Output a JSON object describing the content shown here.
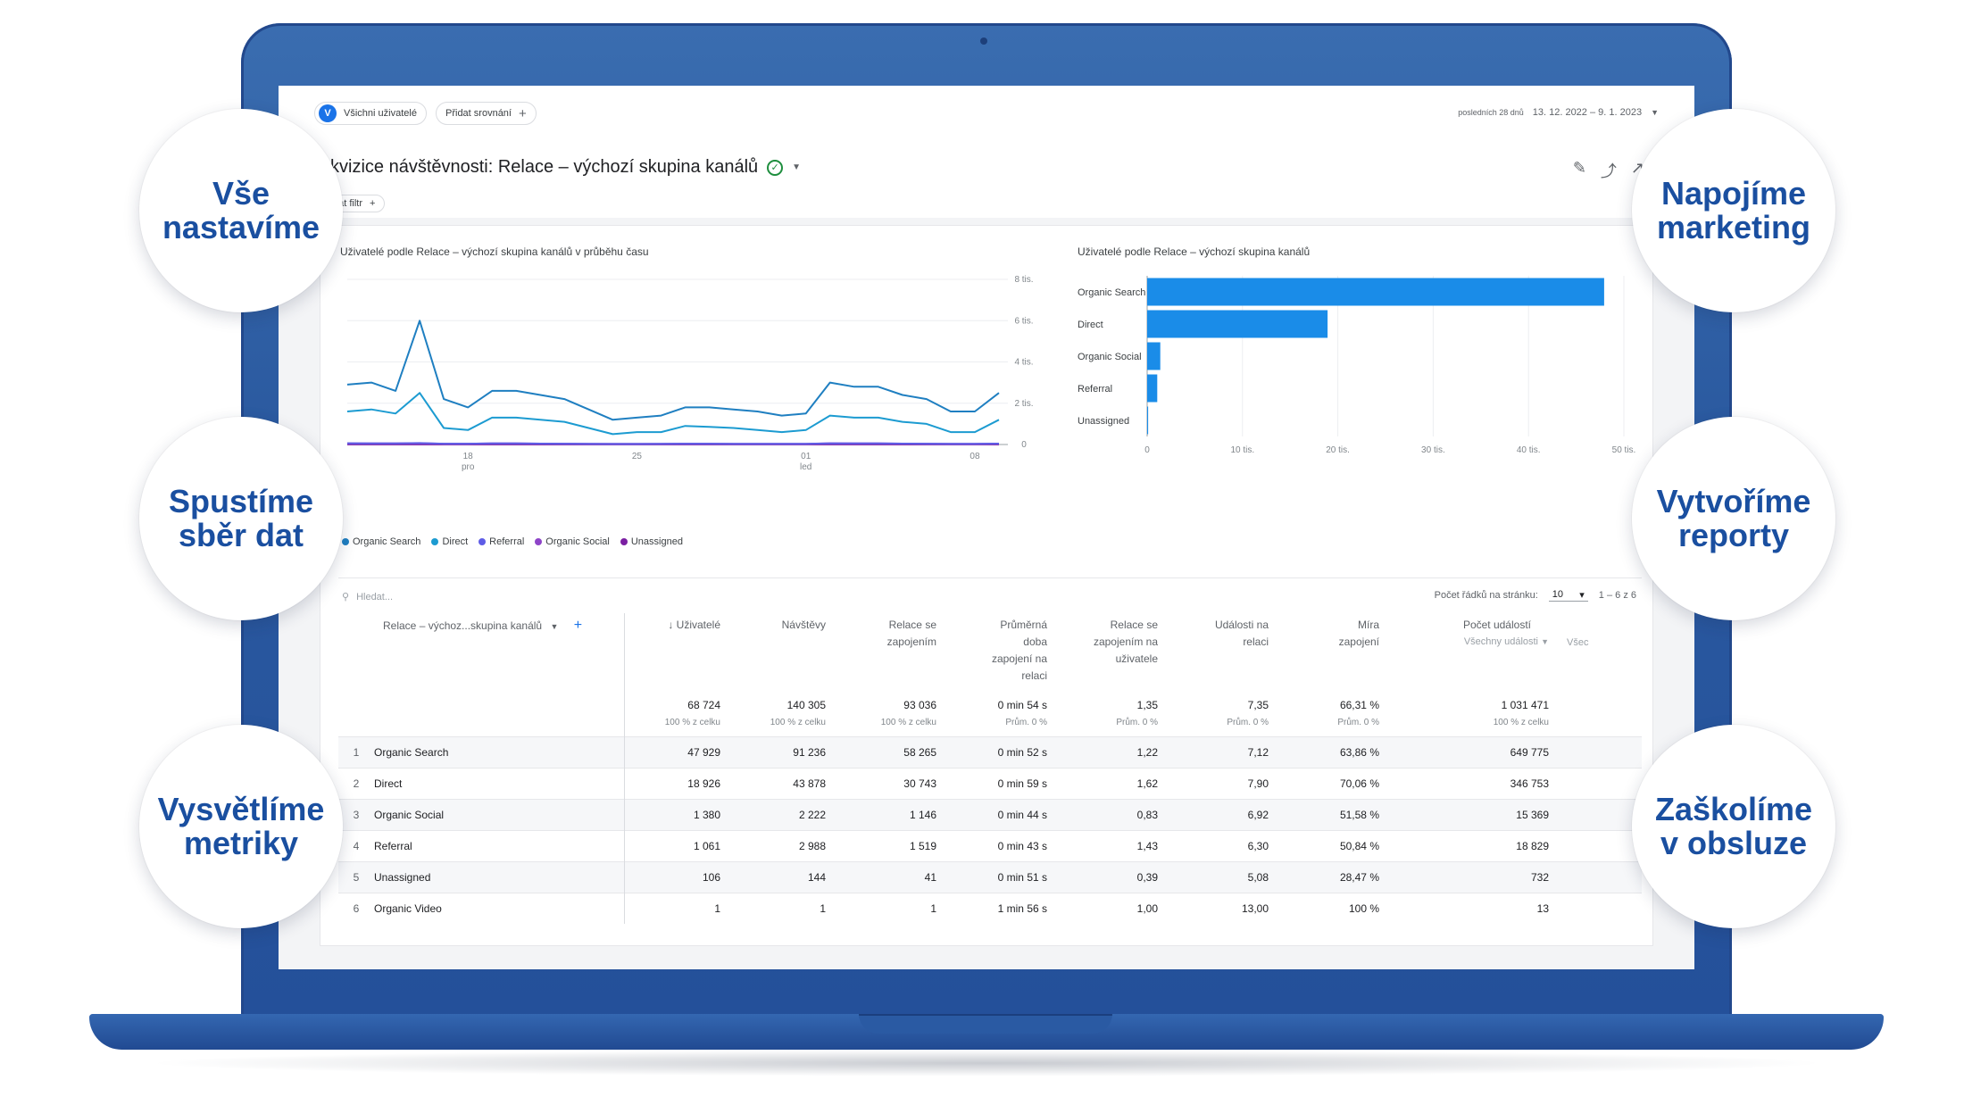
{
  "header": {
    "segment_chip": "Všichni uživatelé",
    "segment_avatar": "V",
    "compare_chip": "Přidat srovnání",
    "date_prefix": "posledních 28 dnů",
    "date_range": "13. 12. 2022 – 9. 1. 2023"
  },
  "report": {
    "title": "kvizice návštěvnosti: Relace – výchozí skupina kanálů",
    "filter_chip": "dat filtr"
  },
  "line_chart": {
    "title": "Uživatelé podle Relace – výchozí skupina kanálů v průběhu času",
    "y_ticks": [
      "8 tis.",
      "6 tis.",
      "4 tis.",
      "2 tis.",
      "0"
    ],
    "x_ticks": [
      {
        "top": "18",
        "bottom": "pro"
      },
      {
        "top": "25",
        "bottom": ""
      },
      {
        "top": "01",
        "bottom": "led"
      },
      {
        "top": "08",
        "bottom": ""
      }
    ],
    "legend": [
      {
        "name": "Organic Search",
        "color": "#1f7fc1"
      },
      {
        "name": "Direct",
        "color": "#1c9bd1"
      },
      {
        "name": "Referral",
        "color": "#5e5ce6"
      },
      {
        "name": "Organic Social",
        "color": "#8e44c8"
      },
      {
        "name": "Unassigned",
        "color": "#7b1fa2"
      }
    ]
  },
  "bar_chart": {
    "title": "Uživatelé podle Relace – výchozí skupina kanálů",
    "x_ticks": [
      "0",
      "10 tis.",
      "20 tis.",
      "30 tis.",
      "40 tis.",
      "50 tis."
    ]
  },
  "table": {
    "search_placeholder": "Hledat...",
    "rows_per_page_label": "Počet řádků na stránku:",
    "rows_per_page": "10",
    "pagination": "1 – 6 z 6",
    "dimension_header": "Relace – výchoz...skupina kanálů",
    "columns": [
      {
        "label": "↓ Uživatelé",
        "sub": ""
      },
      {
        "label": "Návštěvy",
        "sub": ""
      },
      {
        "label": "Relace se zapojením",
        "sub": ""
      },
      {
        "label": "Průměrná doba zapojení na relaci",
        "sub": ""
      },
      {
        "label": "Relace se zapojením na uživatele",
        "sub": ""
      },
      {
        "label": "Události na relaci",
        "sub": ""
      },
      {
        "label": "Míra zapojení",
        "sub": ""
      },
      {
        "label": "Počet událostí",
        "sub": "Všechny události"
      }
    ],
    "more_column": "Všec",
    "totals": [
      {
        "value": "68 724",
        "pct": "100 % z celku"
      },
      {
        "value": "140 305",
        "pct": "100 % z celku"
      },
      {
        "value": "93 036",
        "pct": "100 % z celku"
      },
      {
        "value": "0 min 54 s",
        "pct": "Prům. 0 %"
      },
      {
        "value": "1,35",
        "pct": "Prům. 0 %"
      },
      {
        "value": "7,35",
        "pct": "Prům. 0 %"
      },
      {
        "value": "66,31 %",
        "pct": "Prům. 0 %"
      },
      {
        "value": "1 031 471",
        "pct": "100 % z celku"
      }
    ],
    "rows": [
      {
        "idx": "1",
        "name": "Organic Search",
        "cells": [
          "47 929",
          "91 236",
          "58 265",
          "0 min 52 s",
          "1,22",
          "7,12",
          "63,86 %",
          "649 775"
        ]
      },
      {
        "idx": "2",
        "name": "Direct",
        "cells": [
          "18 926",
          "43 878",
          "30 743",
          "0 min 59 s",
          "1,62",
          "7,90",
          "70,06 %",
          "346 753"
        ]
      },
      {
        "idx": "3",
        "name": "Organic Social",
        "cells": [
          "1 380",
          "2 222",
          "1 146",
          "0 min 44 s",
          "0,83",
          "6,92",
          "51,58 %",
          "15 369"
        ]
      },
      {
        "idx": "4",
        "name": "Referral",
        "cells": [
          "1 061",
          "2 988",
          "1 519",
          "0 min 43 s",
          "1,43",
          "6,30",
          "50,84 %",
          "18 829"
        ]
      },
      {
        "idx": "5",
        "name": "Unassigned",
        "cells": [
          "106",
          "144",
          "41",
          "0 min 51 s",
          "0,39",
          "5,08",
          "28,47 %",
          "732"
        ]
      },
      {
        "idx": "6",
        "name": "Organic Video",
        "cells": [
          "1",
          "1",
          "1",
          "1 min 56 s",
          "1,00",
          "13,00",
          "100 %",
          "13"
        ]
      }
    ]
  },
  "bubbles": {
    "left": [
      [
        "Vše",
        "nastavíme"
      ],
      [
        "Spustíme",
        "sběr dat"
      ],
      [
        "Vysvětlíme",
        "metriky"
      ]
    ],
    "right": [
      [
        "Napojíme",
        "marketing"
      ],
      [
        "Vytvoříme",
        "reporty"
      ],
      [
        "Zaškolíme",
        "v obsluze"
      ]
    ]
  },
  "chart_data": [
    {
      "type": "line",
      "title": "Uživatelé podle Relace – výchozí skupina kanálů v průběhu času",
      "ylim": [
        0,
        8000
      ],
      "y_ticks": [
        0,
        2000,
        4000,
        6000,
        8000
      ],
      "x": [
        1,
        2,
        3,
        4,
        5,
        6,
        7,
        8,
        9,
        10,
        11,
        12,
        13,
        14,
        15,
        16,
        17,
        18,
        19,
        20,
        21,
        22,
        23,
        24,
        25,
        26,
        27,
        28
      ],
      "series": [
        {
          "name": "Organic Search",
          "values": [
            2900,
            3000,
            2600,
            6000,
            2200,
            1800,
            2600,
            2600,
            2400,
            2200,
            1700,
            1200,
            1300,
            1400,
            1800,
            1800,
            1700,
            1600,
            1400,
            1500,
            3000,
            2800,
            2800,
            2400,
            2200,
            1600,
            1600,
            2500
          ]
        },
        {
          "name": "Direct",
          "values": [
            1600,
            1700,
            1500,
            2500,
            800,
            700,
            1300,
            1300,
            1200,
            1100,
            800,
            500,
            600,
            600,
            900,
            850,
            800,
            700,
            600,
            700,
            1400,
            1300,
            1300,
            1100,
            1000,
            600,
            600,
            1200
          ]
        },
        {
          "name": "Referral",
          "values": [
            60,
            50,
            50,
            70,
            40,
            40,
            50,
            50,
            45,
            40,
            30,
            25,
            25,
            30,
            40,
            40,
            35,
            35,
            30,
            30,
            50,
            50,
            50,
            45,
            40,
            30,
            30,
            45
          ]
        },
        {
          "name": "Organic Social",
          "values": [
            50,
            50,
            50,
            60,
            40,
            40,
            50,
            50,
            45,
            40,
            30,
            30,
            30,
            30,
            40,
            40,
            35,
            35,
            30,
            30,
            60,
            50,
            50,
            45,
            40,
            30,
            30,
            45
          ]
        },
        {
          "name": "Unassigned",
          "values": [
            5,
            5,
            5,
            6,
            4,
            4,
            5,
            5,
            4,
            4,
            3,
            3,
            3,
            3,
            4,
            4,
            4,
            4,
            3,
            3,
            5,
            5,
            5,
            4,
            4,
            3,
            3,
            4
          ]
        }
      ]
    },
    {
      "type": "bar",
      "orientation": "horizontal",
      "title": "Uživatelé podle Relace – výchozí skupina kanálů",
      "categories": [
        "Organic Search",
        "Direct",
        "Organic Social",
        "Referral",
        "Unassigned"
      ],
      "values": [
        47929,
        18926,
        1380,
        1061,
        106
      ],
      "xlim": [
        0,
        50000
      ],
      "color": "#1a8ce8"
    }
  ]
}
